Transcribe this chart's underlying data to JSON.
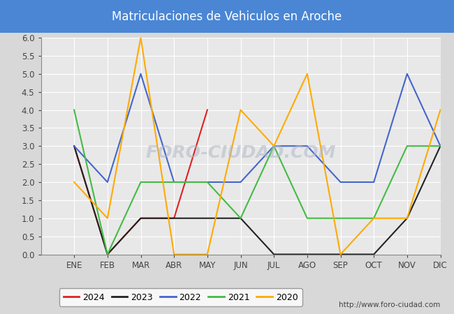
{
  "title": "Matriculaciones de Vehiculos en Aroche",
  "title_bg_color": "#4a86d4",
  "title_text_color": "white",
  "months": [
    "ENE",
    "FEB",
    "MAR",
    "ABR",
    "MAY",
    "JUN",
    "JUL",
    "AGO",
    "SEP",
    "OCT",
    "NOV",
    "DIC"
  ],
  "ylim": [
    0.0,
    6.0
  ],
  "yticks": [
    0.0,
    0.5,
    1.0,
    1.5,
    2.0,
    2.5,
    3.0,
    3.5,
    4.0,
    4.5,
    5.0,
    5.5,
    6.0
  ],
  "series": {
    "2024": {
      "color": "#dd2222",
      "data": [
        null,
        3,
        0,
        1,
        1,
        4,
        null,
        null,
        null,
        null,
        null,
        null,
        null
      ]
    },
    "2023": {
      "color": "#222222",
      "data": [
        null,
        3,
        0,
        1,
        1,
        1,
        1,
        0,
        0,
        0,
        0,
        1,
        3
      ]
    },
    "2022": {
      "color": "#4466cc",
      "data": [
        null,
        3,
        2,
        5,
        2,
        2,
        2,
        3,
        3,
        2,
        2,
        5,
        3
      ]
    },
    "2021": {
      "color": "#44bb44",
      "data": [
        null,
        4,
        0,
        2,
        2,
        2,
        1,
        3,
        1,
        1,
        1,
        3,
        3
      ]
    },
    "2020": {
      "color": "#ffaa00",
      "data": [
        null,
        2,
        1,
        6,
        0,
        0,
        4,
        3,
        5,
        0,
        1,
        1,
        4
      ]
    }
  },
  "legend_order": [
    "2024",
    "2023",
    "2022",
    "2021",
    "2020"
  ],
  "url": "http://www.foro-ciudad.com",
  "bg_color": "#d8d8d8",
  "plot_bg_color": "#e8e8e8",
  "grid_color": "white",
  "watermark_color": "#b0b8c8",
  "watermark_text": "FORO-CIUDAD.COM"
}
